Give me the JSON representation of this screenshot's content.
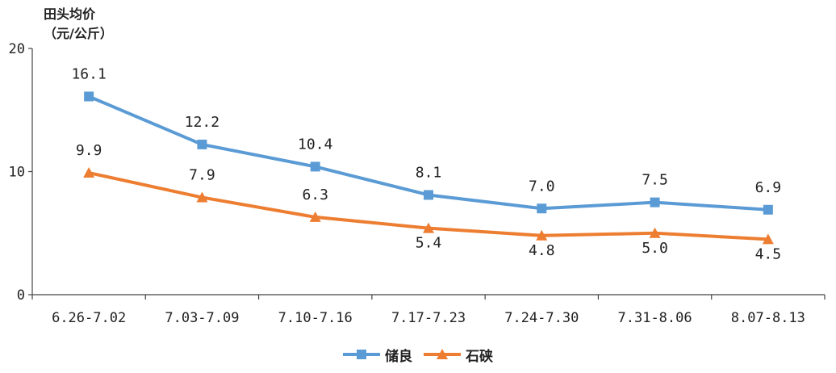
{
  "chart_data": {
    "type": "line",
    "ylabel_line1": "田头均价",
    "ylabel_line2": "（元/公斤）",
    "categories": [
      "6.26-7.02",
      "7.03-7.09",
      "7.10-7.16",
      "7.17-7.23",
      "7.24-7.30",
      "7.31-8.06",
      "8.07-8.13"
    ],
    "ylim": [
      0,
      20
    ],
    "yticks": [
      0,
      10,
      20
    ],
    "grid": false,
    "legend_position": "bottom",
    "series": [
      {
        "name": "储良",
        "color": "#5b9bd5",
        "marker": "square",
        "values": [
          16.1,
          12.2,
          10.4,
          8.1,
          7.0,
          7.5,
          6.9
        ],
        "labels": [
          "16.1",
          "12.2",
          "10.4",
          "8.1",
          "7.0",
          "7.5",
          "6.9"
        ]
      },
      {
        "name": "石硖",
        "color": "#ed7d31",
        "marker": "triangle",
        "values": [
          9.9,
          7.9,
          6.3,
          5.4,
          4.8,
          5.0,
          4.5
        ],
        "labels": [
          "9.9",
          "7.9",
          "6.3",
          "5.4",
          "4.8",
          "5.0",
          "4.5"
        ]
      }
    ]
  }
}
